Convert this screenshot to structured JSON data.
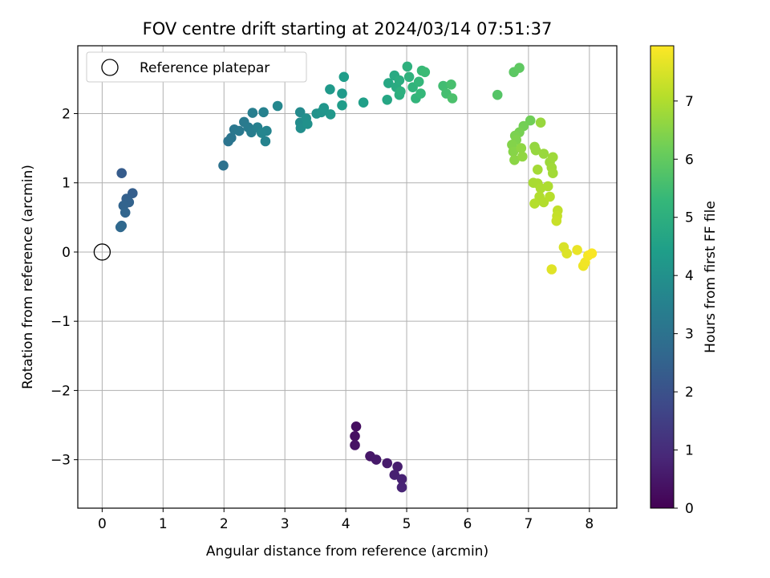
{
  "chart_data": {
    "type": "scatter",
    "title": "FOV centre drift starting at 2024/03/14 07:51:37",
    "xlabel": "Angular distance from reference (arcmin)",
    "ylabel": "Rotation from reference (arcmin)",
    "xlim": [
      -0.4,
      8.45
    ],
    "ylim": [
      -3.7,
      2.98
    ],
    "xticks": [
      0,
      1,
      2,
      3,
      4,
      5,
      6,
      7,
      8
    ],
    "yticks": [
      -3,
      -2,
      -1,
      0,
      1,
      2
    ],
    "grid": true,
    "legend": {
      "placement": "top-left",
      "entries": [
        "Reference platepar"
      ]
    },
    "reference_point": {
      "x": 0,
      "y": 0,
      "label": "Reference platepar"
    },
    "colorbar": {
      "label": "Hours from first FF file",
      "range": [
        0,
        7.95
      ],
      "ticks": [
        0,
        1,
        2,
        3,
        4,
        5,
        6,
        7
      ],
      "colormap": "viridis"
    },
    "series": [
      {
        "points": [
          {
            "x": 4.17,
            "y": -2.52,
            "t": 0.3
          },
          {
            "x": 4.15,
            "y": -2.66,
            "t": 0.35
          },
          {
            "x": 4.15,
            "y": -2.79,
            "t": 0.4
          },
          {
            "x": 4.4,
            "y": -2.95,
            "t": 0.5
          },
          {
            "x": 4.5,
            "y": -3.0,
            "t": 0.55
          },
          {
            "x": 4.68,
            "y": -3.05,
            "t": 0.6
          },
          {
            "x": 4.85,
            "y": -3.1,
            "t": 0.65
          },
          {
            "x": 4.8,
            "y": -3.22,
            "t": 0.7
          },
          {
            "x": 4.92,
            "y": -3.28,
            "t": 0.75
          },
          {
            "x": 4.92,
            "y": -3.4,
            "t": 0.8
          },
          {
            "x": 0.32,
            "y": 1.14,
            "t": 2.3
          },
          {
            "x": 0.5,
            "y": 0.85,
            "t": 2.4
          },
          {
            "x": 0.4,
            "y": 0.77,
            "t": 2.45
          },
          {
            "x": 0.44,
            "y": 0.72,
            "t": 2.5
          },
          {
            "x": 0.35,
            "y": 0.67,
            "t": 2.55
          },
          {
            "x": 0.38,
            "y": 0.57,
            "t": 2.6
          },
          {
            "x": 0.32,
            "y": 0.38,
            "t": 2.65
          },
          {
            "x": 0.3,
            "y": 0.36,
            "t": 2.7
          },
          {
            "x": 1.99,
            "y": 1.25,
            "t": 3.0
          },
          {
            "x": 2.07,
            "y": 1.6,
            "t": 3.05
          },
          {
            "x": 2.12,
            "y": 1.65,
            "t": 3.1
          },
          {
            "x": 2.17,
            "y": 1.77,
            "t": 3.15
          },
          {
            "x": 2.25,
            "y": 1.75,
            "t": 3.2
          },
          {
            "x": 2.33,
            "y": 1.88,
            "t": 3.25
          },
          {
            "x": 2.4,
            "y": 1.8,
            "t": 3.3
          },
          {
            "x": 2.45,
            "y": 1.73,
            "t": 3.35
          },
          {
            "x": 2.47,
            "y": 2.01,
            "t": 3.4
          },
          {
            "x": 2.55,
            "y": 1.8,
            "t": 3.45
          },
          {
            "x": 2.65,
            "y": 2.02,
            "t": 3.5
          },
          {
            "x": 2.68,
            "y": 1.6,
            "t": 3.55
          },
          {
            "x": 2.7,
            "y": 1.75,
            "t": 3.6
          },
          {
            "x": 2.62,
            "y": 1.72,
            "t": 3.62
          },
          {
            "x": 2.88,
            "y": 2.11,
            "t": 3.7
          },
          {
            "x": 3.25,
            "y": 2.02,
            "t": 3.8
          },
          {
            "x": 3.25,
            "y": 1.87,
            "t": 3.85
          },
          {
            "x": 3.26,
            "y": 1.79,
            "t": 3.9
          },
          {
            "x": 3.35,
            "y": 1.93,
            "t": 3.95
          },
          {
            "x": 3.37,
            "y": 1.85,
            "t": 4.0
          },
          {
            "x": 3.52,
            "y": 2.0,
            "t": 4.05
          },
          {
            "x": 3.6,
            "y": 2.02,
            "t": 4.1
          },
          {
            "x": 3.64,
            "y": 2.08,
            "t": 4.15
          },
          {
            "x": 3.75,
            "y": 1.99,
            "t": 4.2
          },
          {
            "x": 3.74,
            "y": 2.35,
            "t": 4.25
          },
          {
            "x": 3.94,
            "y": 2.29,
            "t": 4.3
          },
          {
            "x": 3.94,
            "y": 2.12,
            "t": 4.35
          },
          {
            "x": 3.97,
            "y": 2.53,
            "t": 4.4
          },
          {
            "x": 4.29,
            "y": 2.16,
            "t": 4.45
          },
          {
            "x": 4.68,
            "y": 2.2,
            "t": 4.7
          },
          {
            "x": 4.7,
            "y": 2.44,
            "t": 4.75
          },
          {
            "x": 4.8,
            "y": 2.55,
            "t": 4.8
          },
          {
            "x": 4.83,
            "y": 2.38,
            "t": 4.85
          },
          {
            "x": 4.88,
            "y": 2.48,
            "t": 4.9
          },
          {
            "x": 4.88,
            "y": 2.27,
            "t": 4.95
          },
          {
            "x": 4.9,
            "y": 2.32,
            "t": 5.0
          },
          {
            "x": 5.01,
            "y": 2.68,
            "t": 5.05
          },
          {
            "x": 5.04,
            "y": 2.53,
            "t": 5.1
          },
          {
            "x": 5.1,
            "y": 2.38,
            "t": 5.15
          },
          {
            "x": 5.15,
            "y": 2.22,
            "t": 5.2
          },
          {
            "x": 5.2,
            "y": 2.46,
            "t": 5.25
          },
          {
            "x": 5.23,
            "y": 2.29,
            "t": 5.3
          },
          {
            "x": 5.25,
            "y": 2.62,
            "t": 5.35
          },
          {
            "x": 5.3,
            "y": 2.6,
            "t": 5.4
          },
          {
            "x": 5.6,
            "y": 2.4,
            "t": 5.5
          },
          {
            "x": 5.65,
            "y": 2.29,
            "t": 5.55
          },
          {
            "x": 5.73,
            "y": 2.42,
            "t": 5.6
          },
          {
            "x": 5.75,
            "y": 2.22,
            "t": 5.65
          },
          {
            "x": 6.49,
            "y": 2.27,
            "t": 5.8
          },
          {
            "x": 6.76,
            "y": 2.6,
            "t": 5.9
          },
          {
            "x": 6.85,
            "y": 2.66,
            "t": 5.95
          },
          {
            "x": 7.03,
            "y": 1.9,
            "t": 6.2
          },
          {
            "x": 6.92,
            "y": 1.82,
            "t": 6.25
          },
          {
            "x": 6.85,
            "y": 1.73,
            "t": 6.3
          },
          {
            "x": 6.78,
            "y": 1.68,
            "t": 6.35
          },
          {
            "x": 6.8,
            "y": 1.62,
            "t": 6.4
          },
          {
            "x": 6.73,
            "y": 1.55,
            "t": 6.45
          },
          {
            "x": 6.75,
            "y": 1.45,
            "t": 6.5
          },
          {
            "x": 6.77,
            "y": 1.33,
            "t": 6.55
          },
          {
            "x": 6.88,
            "y": 1.5,
            "t": 6.6
          },
          {
            "x": 6.9,
            "y": 1.38,
            "t": 6.62
          },
          {
            "x": 7.1,
            "y": 1.52,
            "t": 6.65
          },
          {
            "x": 7.12,
            "y": 1.47,
            "t": 6.68
          },
          {
            "x": 7.2,
            "y": 1.87,
            "t": 6.7
          },
          {
            "x": 7.25,
            "y": 1.42,
            "t": 6.72
          },
          {
            "x": 7.35,
            "y": 1.3,
            "t": 6.75
          },
          {
            "x": 7.4,
            "y": 1.37,
            "t": 6.78
          },
          {
            "x": 7.38,
            "y": 1.22,
            "t": 6.8
          },
          {
            "x": 7.4,
            "y": 1.14,
            "t": 6.83
          },
          {
            "x": 7.15,
            "y": 1.19,
            "t": 6.86
          },
          {
            "x": 7.08,
            "y": 1.0,
            "t": 6.9
          },
          {
            "x": 7.15,
            "y": 0.99,
            "t": 6.92
          },
          {
            "x": 7.2,
            "y": 0.92,
            "t": 6.95
          },
          {
            "x": 7.32,
            "y": 0.95,
            "t": 6.97
          },
          {
            "x": 7.18,
            "y": 0.8,
            "t": 7.0
          },
          {
            "x": 7.25,
            "y": 0.72,
            "t": 7.03
          },
          {
            "x": 7.1,
            "y": 0.7,
            "t": 7.05
          },
          {
            "x": 7.35,
            "y": 0.8,
            "t": 7.08
          },
          {
            "x": 7.48,
            "y": 0.6,
            "t": 7.2
          },
          {
            "x": 7.47,
            "y": 0.52,
            "t": 7.25
          },
          {
            "x": 7.46,
            "y": 0.45,
            "t": 7.3
          },
          {
            "x": 7.58,
            "y": 0.07,
            "t": 7.5
          },
          {
            "x": 7.63,
            "y": -0.02,
            "t": 7.55
          },
          {
            "x": 7.38,
            "y": -0.25,
            "t": 7.6
          },
          {
            "x": 7.8,
            "y": 0.03,
            "t": 7.7
          },
          {
            "x": 7.9,
            "y": -0.2,
            "t": 7.75
          },
          {
            "x": 7.93,
            "y": -0.15,
            "t": 7.8
          },
          {
            "x": 7.98,
            "y": -0.05,
            "t": 7.85
          },
          {
            "x": 8.04,
            "y": -0.02,
            "t": 7.9
          }
        ]
      }
    ]
  }
}
